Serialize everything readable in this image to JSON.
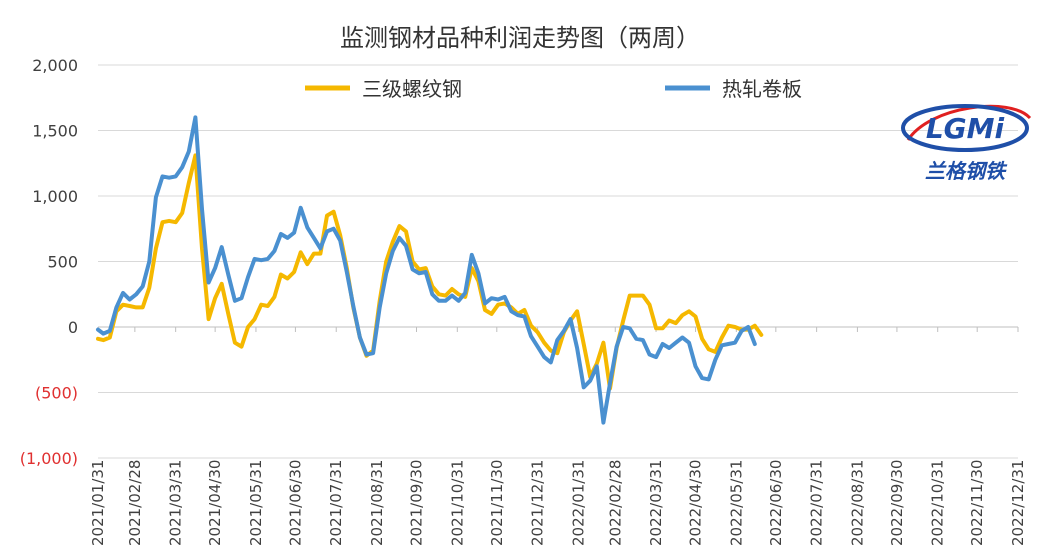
{
  "chart_data": {
    "type": "line",
    "title": "监测钢材品种利润走势图（两周）",
    "ylim": [
      -1000,
      2000
    ],
    "y_ticks": [
      {
        "value": 2000,
        "label": "2,000"
      },
      {
        "value": 1500,
        "label": "1,500"
      },
      {
        "value": 1000,
        "label": "1,000"
      },
      {
        "value": 500,
        "label": "500"
      },
      {
        "value": 0,
        "label": "0"
      },
      {
        "value": -500,
        "label": "(500)"
      },
      {
        "value": -1000,
        "label": "(1,000)"
      }
    ],
    "negative_tick_color": "#e03030",
    "positive_tick_color": "#404040",
    "x_range": [
      "2021-01-31",
      "2022-12-31"
    ],
    "x_tick_labels": [
      "2021/01/31",
      "2021/02/28",
      "2021/03/31",
      "2021/04/30",
      "2021/05/31",
      "2021/06/30",
      "2021/07/31",
      "2021/08/31",
      "2021/09/30",
      "2021/10/31",
      "2021/11/30",
      "2021/12/31",
      "2022/01/31",
      "2022/02/28",
      "2022/03/31",
      "2022/04/30",
      "2022/05/31",
      "2022/06/30",
      "2022/07/31",
      "2022/08/31",
      "2022/09/30",
      "2022/10/31",
      "2022/11/30",
      "2022/12/31"
    ],
    "grid": "horizontal",
    "legend_position": "top",
    "series": [
      {
        "name": "三级螺纹钢",
        "color": "#f5b800",
        "points": [
          [
            "2021-01-31",
            -90
          ],
          [
            "2021-02-04",
            -100
          ],
          [
            "2021-02-09",
            -80
          ],
          [
            "2021-02-14",
            120
          ],
          [
            "2021-02-19",
            170
          ],
          [
            "2021-02-24",
            160
          ],
          [
            "2021-03-01",
            150
          ],
          [
            "2021-03-06",
            150
          ],
          [
            "2021-03-11",
            300
          ],
          [
            "2021-03-16",
            600
          ],
          [
            "2021-03-21",
            800
          ],
          [
            "2021-03-26",
            810
          ],
          [
            "2021-03-31",
            800
          ],
          [
            "2021-04-05",
            870
          ],
          [
            "2021-04-10",
            1100
          ],
          [
            "2021-04-15",
            1310
          ],
          [
            "2021-04-20",
            600
          ],
          [
            "2021-04-25",
            60
          ],
          [
            "2021-04-30",
            220
          ],
          [
            "2021-05-05",
            330
          ],
          [
            "2021-05-10",
            100
          ],
          [
            "2021-05-15",
            -120
          ],
          [
            "2021-05-20",
            -150
          ],
          [
            "2021-05-25",
            0
          ],
          [
            "2021-05-30",
            60
          ],
          [
            "2021-06-04",
            170
          ],
          [
            "2021-06-09",
            160
          ],
          [
            "2021-06-14",
            230
          ],
          [
            "2021-06-19",
            400
          ],
          [
            "2021-06-24",
            370
          ],
          [
            "2021-06-29",
            420
          ],
          [
            "2021-07-04",
            570
          ],
          [
            "2021-07-09",
            480
          ],
          [
            "2021-07-14",
            560
          ],
          [
            "2021-07-19",
            560
          ],
          [
            "2021-07-24",
            850
          ],
          [
            "2021-07-29",
            880
          ],
          [
            "2021-08-03",
            700
          ],
          [
            "2021-08-08",
            450
          ],
          [
            "2021-08-13",
            150
          ],
          [
            "2021-08-18",
            -80
          ],
          [
            "2021-08-23",
            -220
          ],
          [
            "2021-08-28",
            -180
          ],
          [
            "2021-09-02",
            200
          ],
          [
            "2021-09-07",
            500
          ],
          [
            "2021-09-12",
            650
          ],
          [
            "2021-09-17",
            770
          ],
          [
            "2021-09-22",
            730
          ],
          [
            "2021-09-27",
            500
          ],
          [
            "2021-10-02",
            440
          ],
          [
            "2021-10-07",
            450
          ],
          [
            "2021-10-12",
            310
          ],
          [
            "2021-10-17",
            250
          ],
          [
            "2021-10-22",
            240
          ],
          [
            "2021-10-27",
            290
          ],
          [
            "2021-11-01",
            250
          ],
          [
            "2021-11-06",
            230
          ],
          [
            "2021-11-11",
            450
          ],
          [
            "2021-11-16",
            350
          ],
          [
            "2021-11-21",
            130
          ],
          [
            "2021-11-26",
            100
          ],
          [
            "2021-12-01",
            170
          ],
          [
            "2021-12-06",
            180
          ],
          [
            "2021-12-11",
            150
          ],
          [
            "2021-12-16",
            100
          ],
          [
            "2021-12-21",
            130
          ],
          [
            "2021-12-26",
            10
          ],
          [
            "2021-12-31",
            -40
          ],
          [
            "2022-01-05",
            -120
          ],
          [
            "2022-01-10",
            -180
          ],
          [
            "2022-01-15",
            -200
          ],
          [
            "2022-01-20",
            -40
          ],
          [
            "2022-01-25",
            50
          ],
          [
            "2022-01-30",
            120
          ],
          [
            "2022-02-04",
            -130
          ],
          [
            "2022-02-09",
            -380
          ],
          [
            "2022-02-14",
            -280
          ],
          [
            "2022-02-19",
            -120
          ],
          [
            "2022-02-24",
            -470
          ],
          [
            "2022-03-01",
            -160
          ],
          [
            "2022-03-06",
            50
          ],
          [
            "2022-03-11",
            240
          ],
          [
            "2022-03-16",
            240
          ],
          [
            "2022-03-21",
            240
          ],
          [
            "2022-03-26",
            170
          ],
          [
            "2022-03-31",
            -10
          ],
          [
            "2022-04-05",
            -10
          ],
          [
            "2022-04-10",
            50
          ],
          [
            "2022-04-15",
            30
          ],
          [
            "2022-04-20",
            90
          ],
          [
            "2022-04-25",
            120
          ],
          [
            "2022-04-30",
            80
          ],
          [
            "2022-05-05",
            -90
          ],
          [
            "2022-05-10",
            -170
          ],
          [
            "2022-05-15",
            -190
          ],
          [
            "2022-05-20",
            -80
          ],
          [
            "2022-05-25",
            10
          ],
          [
            "2022-05-30",
            0
          ],
          [
            "2022-06-04",
            -20
          ],
          [
            "2022-06-09",
            -20
          ],
          [
            "2022-06-14",
            10
          ],
          [
            "2022-06-19",
            -60
          ]
        ]
      },
      {
        "name": "热轧卷板",
        "color": "#4a90d0",
        "points": [
          [
            "2021-01-31",
            -20
          ],
          [
            "2021-02-04",
            -50
          ],
          [
            "2021-02-09",
            -30
          ],
          [
            "2021-02-14",
            150
          ],
          [
            "2021-02-19",
            260
          ],
          [
            "2021-02-24",
            210
          ],
          [
            "2021-03-01",
            250
          ],
          [
            "2021-03-06",
            310
          ],
          [
            "2021-03-11",
            500
          ],
          [
            "2021-03-16",
            990
          ],
          [
            "2021-03-21",
            1150
          ],
          [
            "2021-03-26",
            1140
          ],
          [
            "2021-03-31",
            1150
          ],
          [
            "2021-04-05",
            1220
          ],
          [
            "2021-04-10",
            1340
          ],
          [
            "2021-04-15",
            1600
          ],
          [
            "2021-04-20",
            900
          ],
          [
            "2021-04-25",
            340
          ],
          [
            "2021-04-30",
            450
          ],
          [
            "2021-05-05",
            610
          ],
          [
            "2021-05-10",
            400
          ],
          [
            "2021-05-15",
            200
          ],
          [
            "2021-05-20",
            220
          ],
          [
            "2021-05-25",
            380
          ],
          [
            "2021-05-30",
            520
          ],
          [
            "2021-06-04",
            510
          ],
          [
            "2021-06-09",
            520
          ],
          [
            "2021-06-14",
            580
          ],
          [
            "2021-06-19",
            710
          ],
          [
            "2021-06-24",
            680
          ],
          [
            "2021-06-29",
            720
          ],
          [
            "2021-07-04",
            910
          ],
          [
            "2021-07-09",
            760
          ],
          [
            "2021-07-14",
            680
          ],
          [
            "2021-07-19",
            600
          ],
          [
            "2021-07-24",
            730
          ],
          [
            "2021-07-29",
            750
          ],
          [
            "2021-08-03",
            660
          ],
          [
            "2021-08-08",
            420
          ],
          [
            "2021-08-13",
            160
          ],
          [
            "2021-08-18",
            -80
          ],
          [
            "2021-08-23",
            -210
          ],
          [
            "2021-08-28",
            -200
          ],
          [
            "2021-09-02",
            150
          ],
          [
            "2021-09-07",
            410
          ],
          [
            "2021-09-12",
            580
          ],
          [
            "2021-09-17",
            680
          ],
          [
            "2021-09-22",
            620
          ],
          [
            "2021-09-27",
            440
          ],
          [
            "2021-10-02",
            410
          ],
          [
            "2021-10-07",
            420
          ],
          [
            "2021-10-12",
            250
          ],
          [
            "2021-10-17",
            200
          ],
          [
            "2021-10-22",
            200
          ],
          [
            "2021-10-27",
            240
          ],
          [
            "2021-11-01",
            200
          ],
          [
            "2021-11-06",
            260
          ],
          [
            "2021-11-11",
            550
          ],
          [
            "2021-11-16",
            410
          ],
          [
            "2021-11-21",
            180
          ],
          [
            "2021-11-26",
            220
          ],
          [
            "2021-12-01",
            210
          ],
          [
            "2021-12-06",
            230
          ],
          [
            "2021-12-11",
            120
          ],
          [
            "2021-12-16",
            90
          ],
          [
            "2021-12-21",
            80
          ],
          [
            "2021-12-26",
            -70
          ],
          [
            "2021-12-31",
            -150
          ],
          [
            "2022-01-05",
            -230
          ],
          [
            "2022-01-10",
            -270
          ],
          [
            "2022-01-15",
            -100
          ],
          [
            "2022-01-20",
            -30
          ],
          [
            "2022-01-25",
            60
          ],
          [
            "2022-01-30",
            -160
          ],
          [
            "2022-02-04",
            -460
          ],
          [
            "2022-02-09",
            -410
          ],
          [
            "2022-02-14",
            -300
          ],
          [
            "2022-02-19",
            -730
          ],
          [
            "2022-02-24",
            -430
          ],
          [
            "2022-03-01",
            -150
          ],
          [
            "2022-03-06",
            0
          ],
          [
            "2022-03-11",
            -10
          ],
          [
            "2022-03-16",
            -90
          ],
          [
            "2022-03-21",
            -100
          ],
          [
            "2022-03-26",
            -210
          ],
          [
            "2022-03-31",
            -230
          ],
          [
            "2022-04-05",
            -130
          ],
          [
            "2022-04-10",
            -160
          ],
          [
            "2022-04-15",
            -120
          ],
          [
            "2022-04-20",
            -80
          ],
          [
            "2022-04-25",
            -120
          ],
          [
            "2022-04-30",
            -300
          ],
          [
            "2022-05-05",
            -390
          ],
          [
            "2022-05-10",
            -400
          ],
          [
            "2022-05-15",
            -250
          ],
          [
            "2022-05-20",
            -140
          ],
          [
            "2022-05-25",
            -130
          ],
          [
            "2022-05-30",
            -120
          ],
          [
            "2022-06-04",
            -30
          ],
          [
            "2022-06-09",
            0
          ],
          [
            "2022-06-14",
            -130
          ]
        ]
      }
    ]
  },
  "logo": {
    "mark": "LGMi",
    "name": "兰格钢铁",
    "mark_color": "#1f4fa8",
    "swoosh_color": "#e02020"
  }
}
